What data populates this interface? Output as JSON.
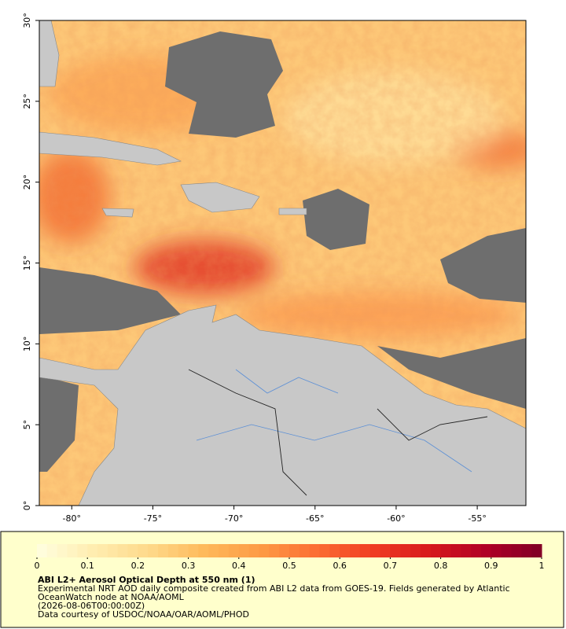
{
  "map": {
    "xlim": [
      -82,
      -52
    ],
    "ylim": [
      0,
      30
    ],
    "xticks": [
      {
        "value": -80,
        "label": "-80°"
      },
      {
        "value": -75,
        "label": "-75°"
      },
      {
        "value": -70,
        "label": "-70°"
      },
      {
        "value": -65,
        "label": "-65°"
      },
      {
        "value": -60,
        "label": "-60°"
      },
      {
        "value": -55,
        "label": "-55°"
      }
    ],
    "yticks": [
      {
        "value": 0,
        "label": "0°"
      },
      {
        "value": 5,
        "label": "5°"
      },
      {
        "value": 10,
        "label": "10°"
      },
      {
        "value": 15,
        "label": "15°"
      },
      {
        "value": 20,
        "label": "20°"
      },
      {
        "value": 25,
        "label": "25°"
      },
      {
        "value": 30,
        "label": "30°"
      }
    ]
  },
  "legend": {
    "clim": [
      0,
      1
    ],
    "ticks": [
      0,
      0.1,
      0.2,
      0.3,
      0.4,
      0.5,
      0.6,
      0.7,
      0.8,
      0.9,
      1
    ],
    "colors": [
      "#ffffe0",
      "#ffedb0",
      "#fed98a",
      "#feb95a",
      "#fd9a45",
      "#fc6d33",
      "#f03c23",
      "#d7191c",
      "#b00026",
      "#800026"
    ],
    "title": "ABI L2+ Aerosol Optical Depth at 550 nm (1)",
    "lines": [
      "Experimental NRT AOD daily composite created from ABI L2 data from GOES-19. Fields generated by Atlantic OceanWatch node at NOAA/AOML",
      "(2026-08-06T00:00:00Z)",
      "Data courtesy of USDOC/NOAA/OAR/AOML/PHOD"
    ]
  }
}
